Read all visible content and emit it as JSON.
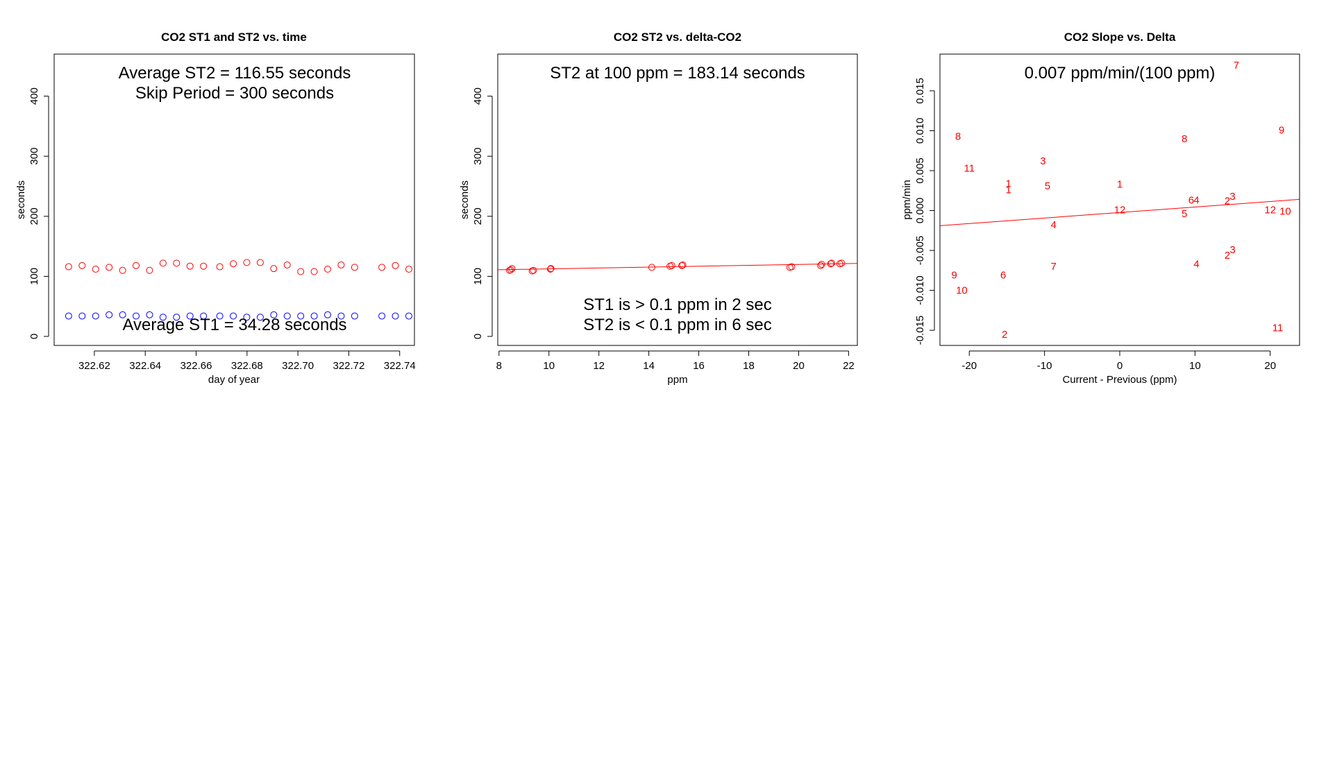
{
  "chart_data": [
    {
      "type": "scatter",
      "title": "CO2 ST1 and ST2 vs. time",
      "xlabel": "day of year",
      "ylabel": "seconds",
      "xlim": [
        322.6042,
        322.7458
      ],
      "ylim": [
        -15,
        470
      ],
      "xticks": [
        322.62,
        322.64,
        322.66,
        322.68,
        322.7,
        322.72,
        322.74
      ],
      "xtick_labels": [
        "322.62",
        "322.64",
        "322.66",
        "322.68",
        "322.70",
        "322.72",
        "322.74"
      ],
      "yticks": [
        0,
        100,
        200,
        300,
        400
      ],
      "ytick_labels": [
        "0",
        "100",
        "200",
        "300",
        "400"
      ],
      "annotations": [
        {
          "text": "Average ST2 =  116.55  seconds",
          "position": "top-center"
        },
        {
          "text": "Skip Period =  300  seconds",
          "position": "top-center"
        },
        {
          "text": "Average ST1 =  34.28  seconds",
          "position": "bottom-center"
        }
      ],
      "series": [
        {
          "name": "ST2",
          "color": "#ff0000",
          "x": [
            322.6099,
            322.6152,
            322.6205,
            322.6258,
            322.6311,
            322.6364,
            322.6417,
            322.647,
            322.6523,
            322.6576,
            322.6629,
            322.6693,
            322.6746,
            322.6799,
            322.6852,
            322.6905,
            322.6958,
            322.7011,
            322.7064,
            322.7117,
            322.717,
            322.7223,
            322.733,
            322.7383,
            322.7436
          ],
          "y": [
            116,
            118,
            112,
            115,
            110,
            118,
            110,
            122,
            122,
            117,
            117,
            116,
            121,
            123,
            123,
            113,
            119,
            108,
            108,
            112,
            119,
            115,
            115,
            118,
            112
          ]
        },
        {
          "name": "ST1",
          "color": "#0000ff",
          "x": [
            322.6099,
            322.6152,
            322.6205,
            322.6258,
            322.6311,
            322.6364,
            322.6417,
            322.647,
            322.6523,
            322.6576,
            322.6629,
            322.6693,
            322.6746,
            322.6799,
            322.6852,
            322.6905,
            322.6958,
            322.7011,
            322.7064,
            322.7117,
            322.717,
            322.7223,
            322.733,
            322.7383,
            322.7436
          ],
          "y": [
            34,
            34,
            34,
            36,
            36,
            34,
            36,
            32,
            32,
            34,
            34,
            34,
            34,
            32,
            32,
            36,
            34,
            34,
            34,
            36,
            34,
            34,
            34,
            34,
            34
          ]
        }
      ]
    },
    {
      "type": "scatter",
      "title": "CO2 ST2 vs. delta-CO2",
      "xlabel": "ppm",
      "ylabel": "seconds",
      "xlim": [
        7.95,
        22.35
      ],
      "ylim": [
        -15,
        470
      ],
      "xticks": [
        8,
        10,
        12,
        14,
        16,
        18,
        20,
        22
      ],
      "xtick_labels": [
        "8",
        "10",
        "12",
        "14",
        "16",
        "18",
        "20",
        "22"
      ],
      "yticks": [
        0,
        100,
        200,
        300,
        400
      ],
      "ytick_labels": [
        "0",
        "100",
        "200",
        "300",
        "400"
      ],
      "annotations": [
        {
          "text": "ST2 at 100 ppm =  183.14  seconds",
          "position": "top-center"
        },
        {
          "text": "ST1 is > 0.1 ppm in 2 sec",
          "position": "bottom-center"
        },
        {
          "text": "ST2 is < 0.1 ppm in 6 sec",
          "position": "bottom-center"
        }
      ],
      "series": [
        {
          "name": "ST2 vs delta",
          "color": "#ff0000",
          "x": [
            8.42,
            8.47,
            8.52,
            9.33,
            9.38,
            10.06,
            10.08,
            14.12,
            14.85,
            14.92,
            15.32,
            15.36,
            19.65,
            19.72,
            20.88,
            20.92,
            21.28,
            21.32,
            21.65,
            21.72
          ],
          "y": [
            110,
            111,
            113,
            109,
            110,
            112,
            113,
            115,
            117,
            118,
            118,
            119,
            115,
            116,
            118,
            120,
            121,
            122,
            121,
            122
          ]
        }
      ],
      "fit_line": {
        "x": [
          7.95,
          22.35
        ],
        "y": [
          111.0,
          121.5
        ]
      }
    },
    {
      "type": "scatter",
      "title": "CO2 Slope vs. Delta",
      "xlabel": "Current - Previous (ppm)",
      "ylabel": "ppm/min",
      "xlim": [
        -23.9,
        23.9
      ],
      "ylim": [
        -0.0169,
        0.0196
      ],
      "xticks": [
        -20,
        -10,
        0,
        10,
        20
      ],
      "xtick_labels": [
        "-20",
        "-10",
        "0",
        "10",
        "20"
      ],
      "yticks": [
        -0.015,
        -0.01,
        -0.005,
        0.0,
        0.005,
        0.01,
        0.015
      ],
      "ytick_labels": [
        "-0.015",
        "-0.010",
        "-0.005",
        "0.000",
        "0.005",
        "0.010",
        "0.015"
      ],
      "annotations": [
        {
          "text": "0.007  ppm/min/(100 ppm)",
          "position": "top-center"
        }
      ],
      "point_labels": [
        {
          "label": "7",
          "x": 15.5,
          "y": 0.0182
        },
        {
          "label": "8",
          "x": -21.5,
          "y": 0.0093
        },
        {
          "label": "11",
          "x": -20.0,
          "y": 0.0053
        },
        {
          "label": "3",
          "x": -10.2,
          "y": 0.0062
        },
        {
          "label": "8",
          "x": 8.6,
          "y": 0.009
        },
        {
          "label": "9",
          "x": 21.5,
          "y": 0.0101
        },
        {
          "label": "1",
          "x": -14.8,
          "y": 0.0034
        },
        {
          "label": "1",
          "x": -14.8,
          "y": 0.0026
        },
        {
          "label": "5",
          "x": -9.6,
          "y": 0.0031
        },
        {
          "label": "1",
          "x": 0.0,
          "y": 0.0033
        },
        {
          "label": "6",
          "x": 9.5,
          "y": 0.0013
        },
        {
          "label": "4",
          "x": 10.2,
          "y": 0.0013
        },
        {
          "label": "2",
          "x": 14.3,
          "y": 0.0012
        },
        {
          "label": "3",
          "x": 15.0,
          "y": 0.0018
        },
        {
          "label": "12",
          "x": 0.0,
          "y": 0.0001
        },
        {
          "label": "5",
          "x": 8.6,
          "y": -0.0004
        },
        {
          "label": "12",
          "x": 20.0,
          "y": 0.0001
        },
        {
          "label": "10",
          "x": 22.0,
          "y": -0.0001
        },
        {
          "label": "4",
          "x": -8.8,
          "y": -0.0018
        },
        {
          "label": "3",
          "x": 15.0,
          "y": -0.0049
        },
        {
          "label": "2",
          "x": 14.3,
          "y": -0.0056
        },
        {
          "label": "4",
          "x": 10.2,
          "y": -0.0067
        },
        {
          "label": "7",
          "x": -8.8,
          "y": -0.007
        },
        {
          "label": "9",
          "x": -22.0,
          "y": -0.0081
        },
        {
          "label": "6",
          "x": -15.5,
          "y": -0.0081
        },
        {
          "label": "10",
          "x": -21.0,
          "y": -0.01
        },
        {
          "label": "2",
          "x": -15.3,
          "y": -0.0155
        },
        {
          "label": "11",
          "x": 21.0,
          "y": -0.0147
        }
      ],
      "label_color": "#ff0000",
      "fit_line": {
        "x": [
          -23.9,
          23.9
        ],
        "y": [
          -0.0019,
          0.0014
        ]
      }
    }
  ]
}
